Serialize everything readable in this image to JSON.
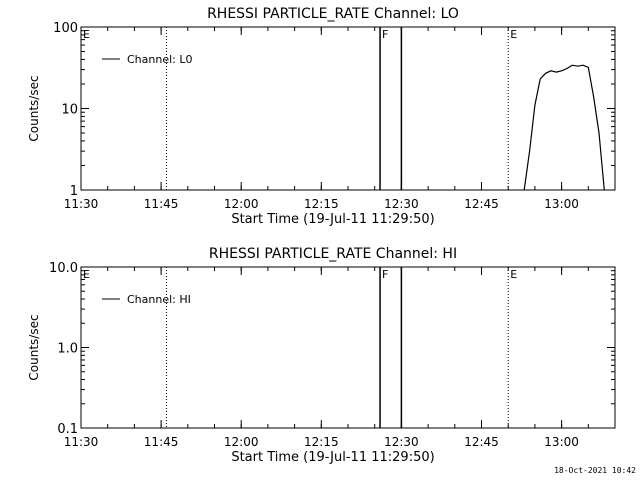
{
  "footer": {
    "timestamp": "18-Oct-2021 10:42"
  },
  "chart_data": [
    {
      "type": "line",
      "title": "RHESSI PARTICLE_RATE Channel: LO",
      "xlabel": "Start Time (19-Jul-11 11:29:50)",
      "ylabel": "Counts/sec",
      "yscale": "log",
      "xlim": [
        "11:30",
        "13:10"
      ],
      "ylim": [
        1,
        100
      ],
      "xticks": [
        "11:30",
        "11:45",
        "12:00",
        "12:15",
        "12:30",
        "12:45",
        "13:00"
      ],
      "yticks": [
        "1",
        "10",
        "100"
      ],
      "legend": {
        "label": "Channel: L0",
        "position": "top-left"
      },
      "grid": false,
      "markers": [
        {
          "label": "E",
          "time": "11:30",
          "style": "label"
        },
        {
          "time": "11:46",
          "style": "dotted"
        },
        {
          "label": "F",
          "time": "12:26",
          "style": "solid"
        },
        {
          "time": "12:30",
          "style": "solid"
        },
        {
          "label": "E",
          "time": "12:50",
          "style": "dotted"
        },
        {
          "time": "13:10",
          "style": "dotted"
        }
      ],
      "series": [
        {
          "name": "Channel: L0",
          "x": [
            "12:53",
            "12:54",
            "12:55",
            "12:56",
            "12:57",
            "12:58",
            "12:59",
            "13:00",
            "13:01",
            "13:02",
            "13:03",
            "13:04",
            "13:05",
            "13:06",
            "13:07",
            "13:08"
          ],
          "y": [
            1,
            3,
            11,
            23,
            27,
            29,
            28,
            29,
            31,
            34,
            33,
            34,
            32,
            14,
            5,
            1
          ]
        }
      ]
    },
    {
      "type": "line",
      "title": "RHESSI PARTICLE_RATE Channel: HI",
      "xlabel": "Start Time (19-Jul-11 11:29:50)",
      "ylabel": "Counts/sec",
      "yscale": "log",
      "xlim": [
        "11:30",
        "13:10"
      ],
      "ylim": [
        0.1,
        10
      ],
      "xticks": [
        "11:30",
        "11:45",
        "12:00",
        "12:15",
        "12:30",
        "12:45",
        "13:00"
      ],
      "yticks": [
        "0.1",
        "1.0",
        "10.0"
      ],
      "legend": {
        "label": "Channel: HI",
        "position": "top-left"
      },
      "grid": false,
      "markers": [
        {
          "label": "E",
          "time": "11:30",
          "style": "label"
        },
        {
          "time": "11:46",
          "style": "dotted"
        },
        {
          "label": "F",
          "time": "12:26",
          "style": "solid"
        },
        {
          "time": "12:30",
          "style": "solid"
        },
        {
          "label": "E",
          "time": "12:50",
          "style": "dotted"
        },
        {
          "time": "13:10",
          "style": "dotted"
        }
      ],
      "series": [
        {
          "name": "Channel: HI",
          "x": [],
          "y": []
        }
      ]
    }
  ]
}
